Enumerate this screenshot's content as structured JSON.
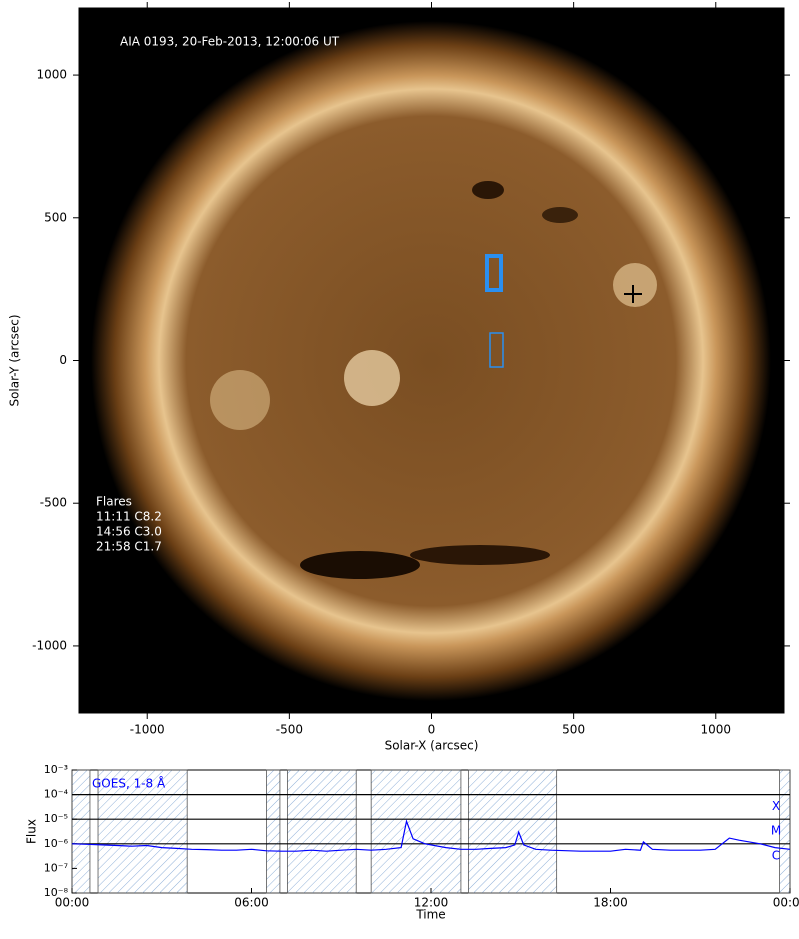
{
  "chart_data": [
    {
      "type": "image",
      "title": "AIA 0193, 20-Feb-2013, 12:00:06 UT",
      "xlabel": "Solar-X (arcsec)",
      "ylabel": "Solar-Y (arcsec)",
      "xlim": [
        -1240,
        1240
      ],
      "ylim": [
        -1235,
        1235
      ],
      "xticks": [
        -1000,
        -500,
        0,
        500,
        1000
      ],
      "yticks": [
        -1000,
        -500,
        0,
        500,
        1000
      ],
      "annotations": [
        "Flares",
        "11:11 C8.2",
        "14:56 C3.0",
        "21:58 C1.7"
      ]
    },
    {
      "type": "line",
      "ylog": true,
      "xlabel": "Time",
      "ylabel": "Flux",
      "xlim": [
        0,
        24
      ],
      "xticks": [
        {
          "value": 0,
          "label": "00:00"
        },
        {
          "value": 6,
          "label": "06:00"
        },
        {
          "value": 12,
          "label": "12:00"
        },
        {
          "value": 18,
          "label": "18:00"
        },
        {
          "value": 24,
          "label": "00:00"
        }
      ],
      "ylim": [
        1e-08,
        0.001
      ],
      "yticks": [
        {
          "value": 1e-08,
          "label": "10⁻⁸"
        },
        {
          "value": 1e-07,
          "label": "10⁻⁷"
        },
        {
          "value": 1e-06,
          "label": "10⁻⁶"
        },
        {
          "value": 1e-05,
          "label": "10⁻⁵"
        },
        {
          "value": 0.0001,
          "label": "10⁻⁴"
        },
        {
          "value": 0.001,
          "label": "10⁻³"
        }
      ],
      "flare_classes": [
        {
          "label": "X",
          "value": 0.0001
        },
        {
          "label": "M",
          "value": 1e-05
        },
        {
          "label": "C",
          "value": 1e-06
        }
      ],
      "shaded_intervals": [
        [
          0,
          0.6
        ],
        [
          0.87,
          3.85
        ],
        [
          6.5,
          6.95
        ],
        [
          7.2,
          9.5
        ],
        [
          10.0,
          13.0
        ],
        [
          13.25,
          16.2
        ],
        [
          23.65,
          24
        ]
      ],
      "x": [
        0,
        0.5,
        1,
        1.5,
        2,
        2.5,
        3,
        3.5,
        4,
        4.5,
        5,
        5.5,
        6,
        6.5,
        7,
        7.5,
        8,
        8.5,
        9,
        9.5,
        10,
        10.5,
        11,
        11.18,
        11.4,
        11.8,
        12.5,
        13,
        13.5,
        14,
        14.5,
        14.8,
        14.93,
        15.1,
        15.5,
        16,
        17,
        18,
        18.5,
        19.0,
        19.1,
        19.4,
        20,
        21,
        21.5,
        21.97,
        22.3,
        23,
        23.5,
        24
      ],
      "series": [
        {
          "name": "GOES, 1-8 Å",
          "color": "#0000ff",
          "values": [
            1e-06,
            9.5e-07,
            9e-07,
            8.5e-07,
            8e-07,
            8.5e-07,
            7e-07,
            6.5e-07,
            6e-07,
            5.8e-07,
            5.5e-07,
            5.5e-07,
            6e-07,
            5.2e-07,
            5e-07,
            5e-07,
            5.5e-07,
            5e-07,
            5.5e-07,
            6e-07,
            5.5e-07,
            6e-07,
            7e-07,
            8.2e-06,
            1.6e-06,
            1e-06,
            7e-07,
            6e-07,
            6e-07,
            6.5e-07,
            7e-07,
            9e-07,
            3e-06,
            9e-07,
            6e-07,
            5.5e-07,
            5e-07,
            5e-07,
            6e-07,
            5.5e-07,
            1.2e-06,
            6e-07,
            5.5e-07,
            5.5e-07,
            6e-07,
            1.7e-06,
            1.4e-06,
            1e-06,
            7e-07,
            6e-07
          ]
        }
      ]
    }
  ]
}
